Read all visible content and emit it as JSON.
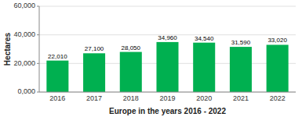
{
  "chart_data": {
    "type": "bar",
    "xlabel": "Europe in the years 2016 - 2022",
    "ylabel": "Hectares",
    "categories": [
      "2016",
      "2017",
      "2018",
      "2019",
      "2020",
      "2021",
      "2022"
    ],
    "values": [
      22010,
      27100,
      28050,
      34960,
      34540,
      31590,
      33020
    ],
    "value_labels": [
      "22,010",
      "27,100",
      "28,050",
      "34,960",
      "34,540",
      "31,590",
      "33,020"
    ],
    "data_labels": true,
    "color": "#00b050",
    "ylim": [
      0,
      60000
    ],
    "yticks": [
      {
        "value": 0,
        "label": "0,000"
      },
      {
        "value": 20000,
        "label": "20,000"
      },
      {
        "value": 40000,
        "label": "40,000"
      },
      {
        "value": 60000,
        "label": "60,000"
      }
    ],
    "grid": true
  }
}
